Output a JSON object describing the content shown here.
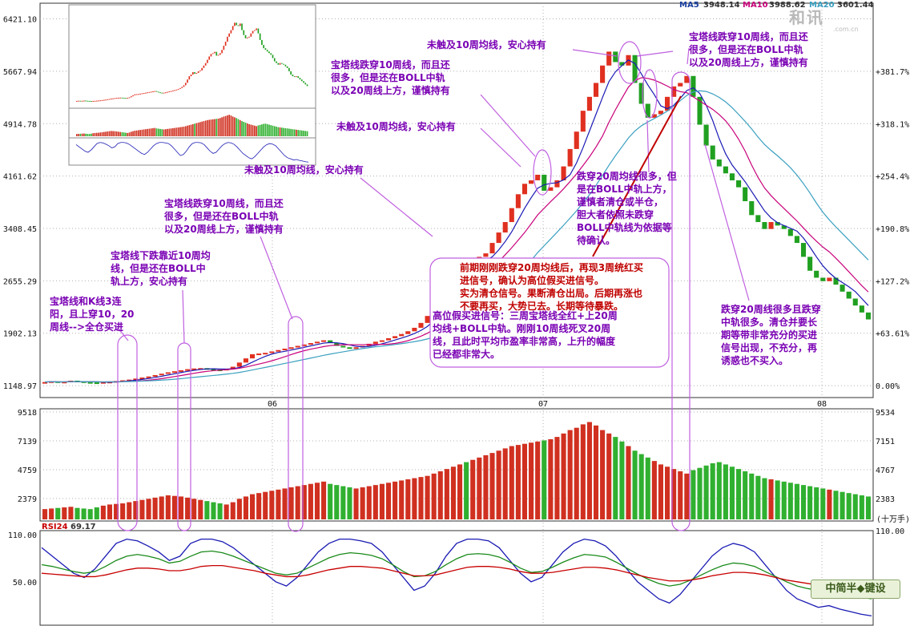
{
  "watermark": {
    "logo_text": "和讯",
    "url": ".com.cn"
  },
  "corner_badge": "中简半◆键设",
  "ma_legend": [
    {
      "label": "MA5",
      "value": "3948.14",
      "color": "#1a3fa0"
    },
    {
      "label": "MA10",
      "value": "3988.62",
      "color": "#c8007a"
    },
    {
      "label": "MA20",
      "value": "3601.44",
      "color": "#3aa0c0"
    }
  ],
  "chart_data": [
    {
      "type": "candlestick",
      "panel": "price",
      "x_tick_labels": [
        "06",
        "07",
        "08"
      ],
      "y_tick_labels": [
        "6421.10",
        "5667.94",
        "4914.78",
        "4161.62",
        "3408.45",
        "2655.29",
        "1902.13",
        "1148.97"
      ],
      "y_tick_values": [
        6421.1,
        5667.94,
        4914.78,
        4161.62,
        3408.45,
        2655.29,
        1902.13,
        1148.97
      ],
      "right_tick_labels": [
        "+381.7%",
        "+318.1%",
        "+254.4%",
        "+190.8%",
        "+127.2%",
        "+63.61%",
        "0.00%"
      ],
      "ylim": [
        1000,
        6600
      ],
      "candles_close": [
        1200,
        1210,
        1195,
        1205,
        1220,
        1210,
        1200,
        1195,
        1190,
        1200,
        1205,
        1215,
        1225,
        1235,
        1250,
        1265,
        1280,
        1300,
        1320,
        1340,
        1355,
        1370,
        1385,
        1395,
        1400,
        1390,
        1380,
        1375,
        1390,
        1420,
        1480,
        1540,
        1600,
        1610,
        1620,
        1640,
        1660,
        1680,
        1700,
        1720,
        1740,
        1760,
        1780,
        1800,
        1760,
        1720,
        1700,
        1690,
        1700,
        1720,
        1750,
        1780,
        1800,
        1830,
        1860,
        1890,
        1930,
        1980,
        2050,
        2150,
        2300,
        2500,
        2700,
        2800,
        2950,
        2850,
        2900,
        3000,
        3050,
        3200,
        3350,
        3500,
        3700,
        3900,
        4050,
        4100,
        4180,
        3950,
        4000,
        4100,
        4300,
        4550,
        4800,
        5100,
        5300,
        5500,
        5750,
        5950,
        5800,
        5750,
        5900,
        5500,
        5200,
        5000,
        5050,
        5100,
        5300,
        5450,
        5500,
        5600,
        5300,
        4900,
        4600,
        4400,
        4300,
        4200,
        4100,
        4000,
        3800,
        3600,
        3500,
        3400,
        3500,
        3450,
        3400,
        3300,
        3200,
        3000,
        2800,
        2700,
        2650,
        2700,
        2600,
        2500,
        2400,
        2300,
        2200,
        2100
      ]
    },
    {
      "type": "bar",
      "panel": "volume",
      "y_tick_labels": [
        "9518",
        "7139",
        "4759",
        "2379"
      ],
      "right_tick_labels": [
        "9534",
        "7151",
        "4767",
        "2383"
      ],
      "unit_label": "(十万手)",
      "ylim": [
        0,
        9518
      ],
      "values": [
        900,
        950,
        1000,
        1050,
        1100,
        1000,
        950,
        900,
        1050,
        1200,
        1300,
        1350,
        1400,
        1500,
        1600,
        1700,
        1800,
        1900,
        2000,
        2100,
        2050,
        2000,
        1900,
        1800,
        1700,
        1600,
        1500,
        1400,
        1300,
        1500,
        1800,
        2000,
        2200,
        2300,
        2400,
        2500,
        2600,
        2700,
        2800,
        2900,
        3000,
        3100,
        3200,
        3300,
        3100,
        3000,
        2900,
        2800,
        2700,
        2800,
        2900,
        3000,
        3100,
        3200,
        3300,
        3400,
        3500,
        3600,
        3700,
        3800,
        4000,
        4200,
        4400,
        4600,
        4800,
        5000,
        5200,
        5400,
        5600,
        5800,
        6000,
        6200,
        6400,
        6500,
        6600,
        6700,
        6800,
        6900,
        7000,
        7200,
        7500,
        7800,
        8000,
        8300,
        8500,
        8200,
        7800,
        7500,
        7200,
        6800,
        6400,
        6000,
        5700,
        5400,
        5100,
        4800,
        4600,
        4400,
        4200,
        4000,
        4300,
        4500,
        4700,
        4900,
        5000,
        4800,
        4600,
        4400,
        4200,
        4000,
        3800,
        3600,
        3500,
        3400,
        3300,
        3200,
        3100,
        3000,
        2900,
        2800,
        2700,
        2600,
        2500,
        2400,
        2300,
        2200,
        2100,
        2000
      ],
      "colors_pattern": "mixed red/green"
    },
    {
      "type": "line",
      "panel": "rsi",
      "title": "RSI24",
      "value_label": "69.17",
      "y_tick_labels": [
        "110.00",
        "50.00"
      ],
      "right_tick_labels": [
        "110.00"
      ],
      "ylim": [
        0,
        110
      ],
      "series": [
        {
          "name": "",
          "color": "#1a1ab4",
          "values": [
            90,
            80,
            70,
            60,
            55,
            65,
            80,
            95,
            100,
            98,
            92,
            85,
            75,
            80,
            95,
            100,
            100,
            97,
            90,
            80,
            70,
            60,
            50,
            45,
            55,
            70,
            85,
            95,
            100,
            100,
            98,
            95,
            85,
            70,
            55,
            40,
            45,
            60,
            80,
            95,
            100,
            100,
            98,
            90,
            75,
            60,
            50,
            55,
            70,
            85,
            95,
            100,
            98,
            92,
            80,
            65,
            50,
            40,
            30,
            25,
            35,
            50,
            65,
            80,
            90,
            95,
            92,
            85,
            70,
            55,
            40,
            30,
            25,
            20,
            22,
            18,
            15,
            12,
            10
          ]
        },
        {
          "name": "",
          "color": "#1a8a1a",
          "values": [
            70,
            68,
            65,
            62,
            60,
            62,
            68,
            75,
            80,
            82,
            80,
            77,
            72,
            74,
            80,
            85,
            86,
            84,
            80,
            75,
            70,
            65,
            60,
            58,
            60,
            66,
            72,
            78,
            82,
            84,
            83,
            81,
            77,
            70,
            62,
            56,
            57,
            62,
            70,
            77,
            82,
            83,
            82,
            79,
            73,
            66,
            61,
            62,
            67,
            73,
            78,
            82,
            81,
            79,
            73,
            66,
            59,
            53,
            48,
            45,
            47,
            52,
            58,
            64,
            69,
            72,
            71,
            68,
            62,
            56,
            50,
            45,
            42,
            40,
            38,
            36,
            34,
            32,
            30
          ]
        },
        {
          "name": "",
          "color": "#c80000",
          "values": [
            60,
            59,
            58,
            57,
            56,
            56,
            58,
            61,
            64,
            66,
            66,
            65,
            63,
            63,
            65,
            68,
            69,
            69,
            67,
            65,
            63,
            60,
            58,
            56,
            56,
            58,
            61,
            64,
            66,
            68,
            68,
            67,
            66,
            63,
            60,
            57,
            57,
            58,
            61,
            64,
            67,
            68,
            68,
            67,
            65,
            62,
            60,
            60,
            61,
            63,
            65,
            67,
            67,
            66,
            64,
            61,
            58,
            55,
            53,
            51,
            51,
            52,
            54,
            57,
            59,
            61,
            61,
            60,
            58,
            55,
            52,
            50,
            48,
            46,
            45,
            44,
            43,
            42,
            41
          ]
        }
      ]
    }
  ],
  "annotations": [
    {
      "id": "a1",
      "lines": [
        "宝塔线和K线3连",
        "阳，且上穿10，20",
        "周线-->全仓买进"
      ]
    },
    {
      "id": "a2",
      "lines": [
        "宝塔线下跌靠近10周均",
        "线，但是还在BOLL中",
        "轨上方，安心持有"
      ]
    },
    {
      "id": "a3",
      "lines": [
        "宝塔线跌穿10周线，而且还",
        "很多，但是还在BOLL中轨",
        "以及20周线上方，谨慎持有"
      ]
    },
    {
      "id": "a4",
      "lines": [
        "未触及10周均线，安心持有"
      ]
    },
    {
      "id": "a5",
      "lines": [
        "未触及10周均线，安心持有"
      ]
    },
    {
      "id": "a6",
      "lines": [
        "宝塔线跌穿10周线，而且还",
        "很多，但是还在BOLL中轨",
        "以及20周线上方，谨慎持有"
      ]
    },
    {
      "id": "a7",
      "lines": [
        "未触及10周均线，安心持有"
      ]
    },
    {
      "id": "a8",
      "lines": [
        "宝塔线跌穿10周线，而且还",
        "很多，但是还在BOLL中轨",
        "以及20周线上方，谨慎持有"
      ]
    },
    {
      "id": "a9",
      "lines": [
        "跌穿20周均线很多，但",
        "是在BOLL中轨上方，",
        "谨慎者清仓或半仓，",
        "胆大者依照未跌穿",
        "BOLL中轨线为依据等",
        "待确认。"
      ]
    },
    {
      "id": "a10",
      "lines": [
        "前期刚刚跌穿20周均线后，再现3周统红买",
        "进信号，确认为高位假买进信号。",
        "实为清仓信号。果断清仓出局。后期再涨也",
        "不要再买，大势已去。长期等待暴跌。"
      ]
    },
    {
      "id": "a11",
      "lines": [
        "高位假买进信号：三周宝塔线全红+上20周",
        "均线+BOLL中轨。刚刚10周线死叉20周",
        "线，且此时平均市盈率非常高，上升的幅度",
        "已经都非常大。"
      ]
    },
    {
      "id": "a12",
      "lines": [
        "跌穿20周线很多且跌穿",
        "中轨很多。清仓并要长",
        "期等带非常充分的买进",
        "信号出现，不充分，再",
        "诱惑也不买入。"
      ]
    }
  ]
}
